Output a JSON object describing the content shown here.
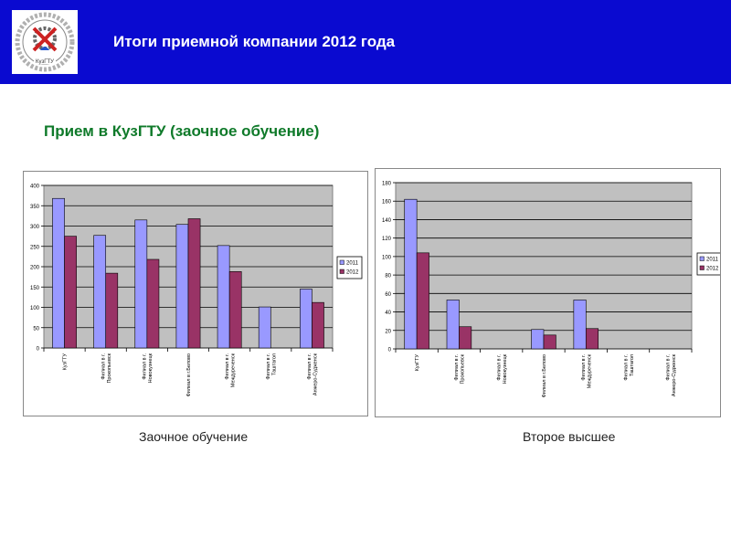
{
  "header": {
    "title": "Итоги приемной компании 2012 года",
    "logo_text": "КузГТУ",
    "background": "#0a0ad0"
  },
  "subtitle": "Прием в КузГТУ (заочное обучение)",
  "captions": [
    "Заочное обучение",
    "Второе высшее"
  ],
  "colors": {
    "series_2011": "#9999ff",
    "series_2012": "#993366",
    "plot_bg": "#c0c0c0",
    "header_bg": "#0a0ad0",
    "subtitle": "#0f7a2a"
  },
  "chart_data": [
    {
      "type": "bar",
      "categories": [
        [
          "КузГТУ"
        ],
        [
          "Филиал в г.",
          "Прокопьевск"
        ],
        [
          "Филиал в г.",
          "Новокузнецк"
        ],
        [
          "Филиал в г.Белово"
        ],
        [
          "Филиал в г.",
          "Междуреченск"
        ],
        [
          "Филиал в г.",
          "Таштагол"
        ],
        [
          "Филиал в г.",
          "Анжеро-Судженск"
        ]
      ],
      "series": [
        {
          "name": "2011",
          "values": [
            368,
            277,
            315,
            304,
            252,
            101,
            145
          ]
        },
        {
          "name": "2012",
          "values": [
            275,
            184,
            218,
            318,
            188,
            0,
            112
          ]
        }
      ],
      "ylim": [
        0,
        400
      ],
      "yticks": [
        0,
        50,
        100,
        150,
        200,
        250,
        300,
        350,
        400
      ],
      "grid": true,
      "legend": "right",
      "title": "",
      "xlabel": "",
      "ylabel": ""
    },
    {
      "type": "bar",
      "categories": [
        [
          "КузГТУ"
        ],
        [
          "Филиал в г.",
          "Прокопьевск"
        ],
        [
          "Филиал в г.",
          "Новокузнецк"
        ],
        [
          "Филиал в г.Белово"
        ],
        [
          "Филиал в г.",
          "Междуреченск"
        ],
        [
          "Филиал в г.",
          "Таштагол"
        ],
        [
          "Филиал в г.",
          "Анжеро-Судженск"
        ]
      ],
      "series": [
        {
          "name": "2011",
          "values": [
            162,
            53,
            0,
            21,
            53,
            0,
            0
          ]
        },
        {
          "name": "2012",
          "values": [
            104,
            24,
            0,
            15,
            22,
            0,
            0
          ]
        }
      ],
      "ylim": [
        0,
        180
      ],
      "yticks": [
        0,
        20,
        40,
        60,
        80,
        100,
        120,
        140,
        160,
        180
      ],
      "grid": true,
      "legend": "right",
      "title": "",
      "xlabel": "",
      "ylabel": ""
    }
  ]
}
